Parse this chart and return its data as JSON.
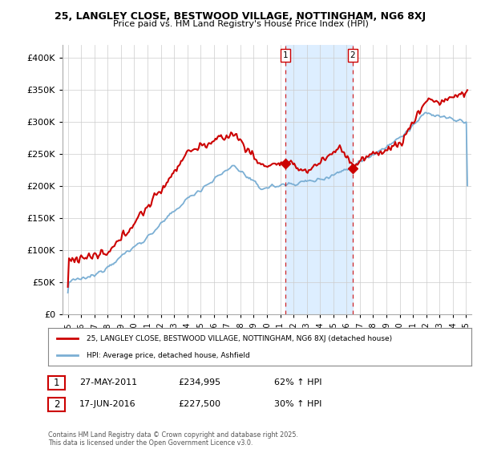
{
  "title1": "25, LANGLEY CLOSE, BESTWOOD VILLAGE, NOTTINGHAM, NG6 8XJ",
  "title2": "Price paid vs. HM Land Registry's House Price Index (HPI)",
  "legend_line1": "25, LANGLEY CLOSE, BESTWOOD VILLAGE, NOTTINGHAM, NG6 8XJ (detached house)",
  "legend_line2": "HPI: Average price, detached house, Ashfield",
  "sale1_label": "1",
  "sale1_date": "27-MAY-2011",
  "sale1_price": "£234,995",
  "sale1_hpi": "62% ↑ HPI",
  "sale2_label": "2",
  "sale2_date": "17-JUN-2016",
  "sale2_price": "£227,500",
  "sale2_hpi": "30% ↑ HPI",
  "footer": "Contains HM Land Registry data © Crown copyright and database right 2025.\nThis data is licensed under the Open Government Licence v3.0.",
  "red_color": "#cc0000",
  "blue_color": "#7bafd4",
  "shade_color": "#ddeeff",
  "ylim": [
    0,
    420000
  ],
  "yticks": [
    0,
    50000,
    100000,
    150000,
    200000,
    250000,
    300000,
    350000,
    400000
  ],
  "sale1_x": 2011.41,
  "sale1_y": 234995,
  "sale2_x": 2016.46,
  "sale2_y": 227500,
  "xlim_left": 1994.6,
  "xlim_right": 2025.4
}
